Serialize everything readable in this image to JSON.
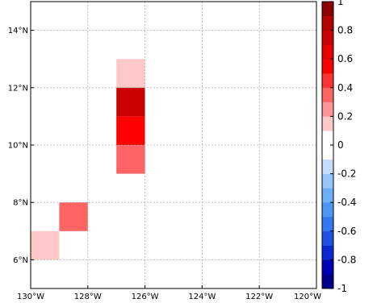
{
  "chart_data": {
    "type": "heatmap",
    "x_ticks": [
      {
        "lon": -130,
        "label": "130°W"
      },
      {
        "lon": -128,
        "label": "128°W"
      },
      {
        "lon": -126,
        "label": "126°W"
      },
      {
        "lon": -124,
        "label": "124°W"
      },
      {
        "lon": -122,
        "label": "122°W"
      },
      {
        "lon": -120,
        "label": "120°W"
      }
    ],
    "y_ticks": [
      {
        "lat": 6,
        "label": "6°N"
      },
      {
        "lat": 8,
        "label": "8°N"
      },
      {
        "lat": 10,
        "label": "10°N"
      },
      {
        "lat": 12,
        "label": "12°N"
      },
      {
        "lat": 14,
        "label": "14°N"
      }
    ],
    "xlim": [
      -130,
      -120
    ],
    "ylim": [
      5,
      15
    ],
    "grid": true,
    "cells": [
      {
        "lon0": -130,
        "lon1": -129,
        "lat0": 6,
        "lat1": 7,
        "value": 0.15
      },
      {
        "lon0": -129,
        "lon1": -128,
        "lat0": 7,
        "lat1": 8,
        "value": 0.3
      },
      {
        "lon0": -127,
        "lon1": -126,
        "lat0": 9,
        "lat1": 10,
        "value": 0.3
      },
      {
        "lon0": -127,
        "lon1": -126,
        "lat0": 10,
        "lat1": 11,
        "value": 0.55
      },
      {
        "lon0": -127,
        "lon1": -126,
        "lat0": 11,
        "lat1": 12,
        "value": 0.75
      },
      {
        "lon0": -127,
        "lon1": -126,
        "lat0": 12,
        "lat1": 13,
        "value": 0.15
      }
    ],
    "colorbar": {
      "range": [
        -1,
        1
      ],
      "ticks": [
        "-1",
        "-0.8",
        "-0.6",
        "-0.4",
        "-0.2",
        "0",
        "0.2",
        "0.4",
        "0.6",
        "0.8",
        "1"
      ],
      "levels": [
        "#00008b",
        "#0000b4",
        "#0a28d2",
        "#1e50e6",
        "#3278f0",
        "#4a96f2",
        "#6eaef6",
        "#96c6fa",
        "#c2dcfc",
        "#ffffff",
        "#ffffff",
        "#ffc8c8",
        "#ff9696",
        "#ff6464",
        "#ff3232",
        "#ff0000",
        "#e60000",
        "#cc0000",
        "#b40000",
        "#8b0000"
      ]
    }
  }
}
